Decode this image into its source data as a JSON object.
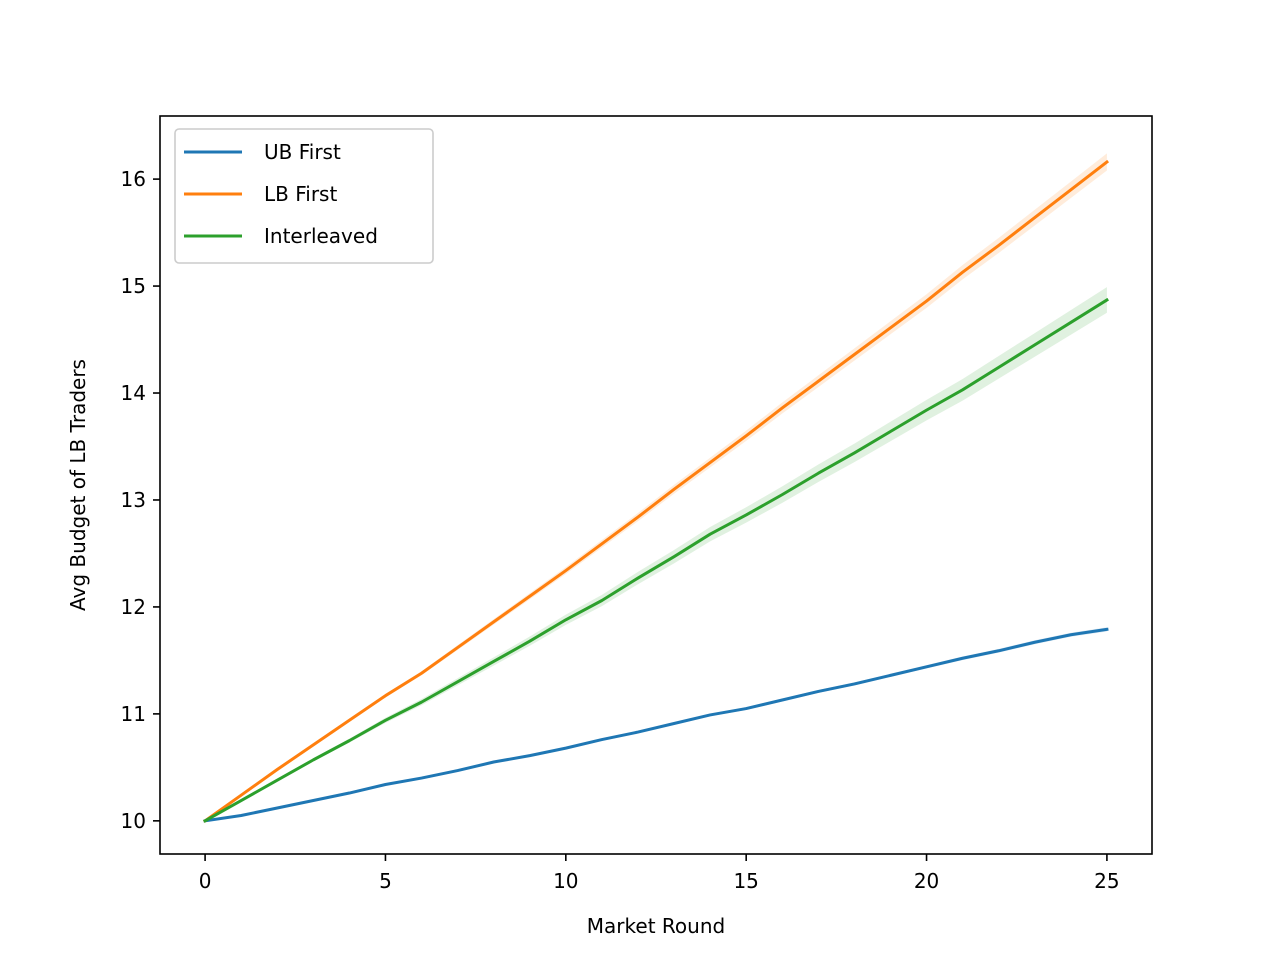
{
  "chart_data": {
    "type": "line",
    "title": "",
    "xlabel": "Market Round",
    "ylabel": "Avg Budget of LB Traders",
    "xlim": [
      -1.25,
      26.25
    ],
    "ylim": [
      9.69,
      16.59
    ],
    "xticks": [
      0,
      5,
      10,
      15,
      20,
      25
    ],
    "yticks": [
      10,
      11,
      12,
      13,
      14,
      15,
      16
    ],
    "x": [
      0,
      1,
      2,
      3,
      4,
      5,
      6,
      7,
      8,
      9,
      10,
      11,
      12,
      13,
      14,
      15,
      16,
      17,
      18,
      19,
      20,
      21,
      22,
      23,
      24,
      25
    ],
    "grid": false,
    "legend_position": "top-left",
    "series": [
      {
        "name": "UB First",
        "color": "#1f77b4",
        "values": [
          10.0,
          10.05,
          10.12,
          10.19,
          10.26,
          10.34,
          10.4,
          10.47,
          10.55,
          10.61,
          10.68,
          10.76,
          10.83,
          10.91,
          10.99,
          11.05,
          11.13,
          11.21,
          11.28,
          11.36,
          11.44,
          11.52,
          11.59,
          11.67,
          11.74,
          11.79
        ],
        "band": 0.02
      },
      {
        "name": "LB First",
        "color": "#ff7f0e",
        "values": [
          10.0,
          10.24,
          10.48,
          10.71,
          10.94,
          11.17,
          11.38,
          11.62,
          11.86,
          12.1,
          12.34,
          12.59,
          12.84,
          13.1,
          13.35,
          13.6,
          13.86,
          14.11,
          14.36,
          14.61,
          14.86,
          15.13,
          15.38,
          15.64,
          15.9,
          16.16
        ],
        "band": 0.08
      },
      {
        "name": "Interleaved",
        "color": "#2ca02c",
        "values": [
          10.0,
          10.19,
          10.38,
          10.57,
          10.75,
          10.94,
          11.11,
          11.3,
          11.49,
          11.68,
          11.88,
          12.06,
          12.27,
          12.47,
          12.68,
          12.86,
          13.05,
          13.25,
          13.44,
          13.64,
          13.84,
          14.03,
          14.24,
          14.45,
          14.66,
          14.87
        ],
        "band": 0.12
      }
    ]
  }
}
